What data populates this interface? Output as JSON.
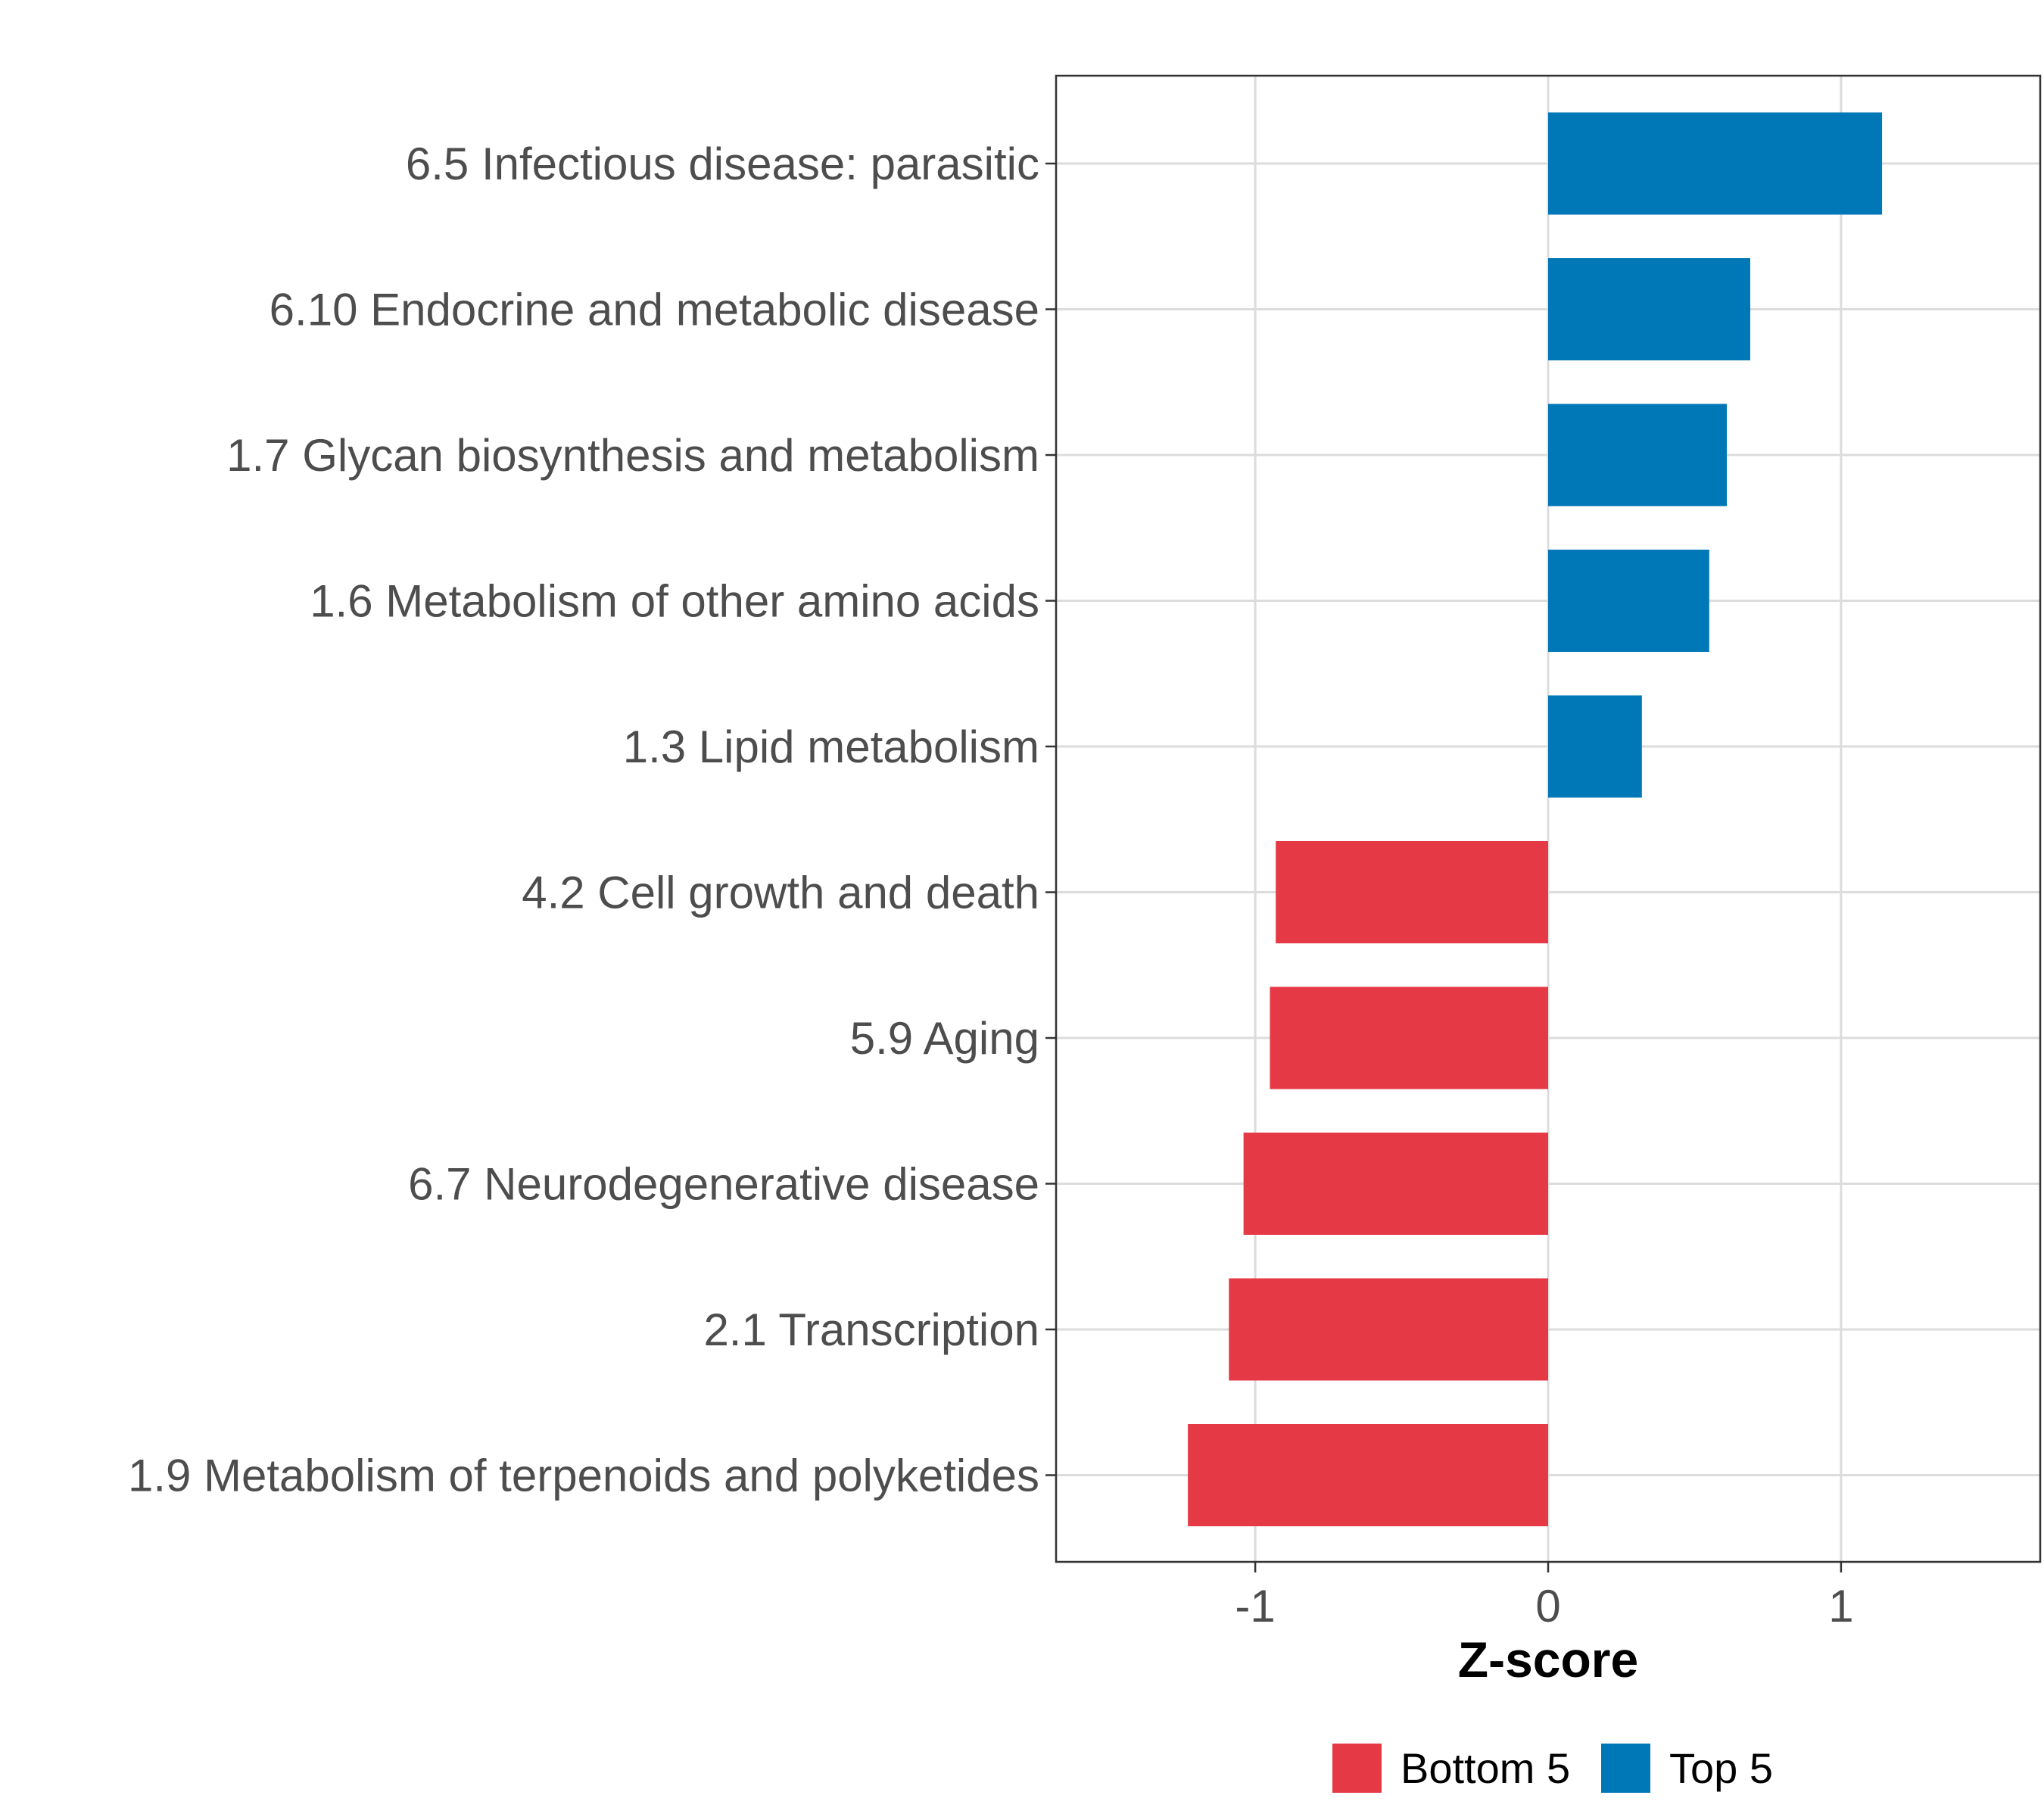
{
  "chart_data": {
    "type": "bar",
    "orientation": "horizontal",
    "title": "",
    "xlabel": "Z-score",
    "ylabel": "",
    "xlim": [
      -1.68,
      1.68
    ],
    "xticks": [
      -1,
      0,
      1
    ],
    "xtick_labels": [
      "-1",
      "0",
      "1"
    ],
    "grid": true,
    "legend_position": "bottom",
    "categories": [
      "6.5 Infectious disease: parasitic",
      "6.10 Endocrine and metabolic disease",
      "1.7 Glycan biosynthesis and metabolism",
      "1.6 Metabolism of other amino acids",
      "1.3 Lipid metabolism",
      "4.2 Cell growth and death",
      "5.9 Aging",
      "6.7 Neurodegenerative disease",
      "2.1 Transcription",
      "1.9 Metabolism of terpenoids and polyketides"
    ],
    "values": [
      1.14,
      0.69,
      0.61,
      0.55,
      0.32,
      -0.93,
      -0.95,
      -1.04,
      -1.09,
      -1.23
    ],
    "groups": [
      "Top 5",
      "Top 5",
      "Top 5",
      "Top 5",
      "Top 5",
      "Bottom 5",
      "Bottom 5",
      "Bottom 5",
      "Bottom 5",
      "Bottom 5"
    ],
    "legend": [
      {
        "name": "Bottom 5",
        "color": "#e63946"
      },
      {
        "name": "Top 5",
        "color": "#0077b6"
      }
    ]
  }
}
